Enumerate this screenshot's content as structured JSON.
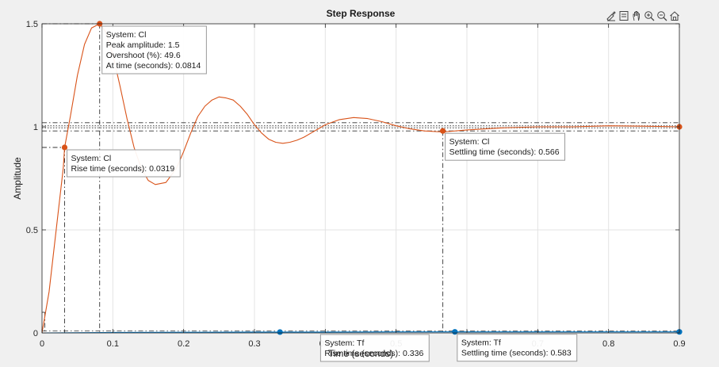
{
  "chart_data": {
    "type": "line",
    "title": "Step Response",
    "xlabel": "Time (seconds)",
    "ylabel": "Amplitude",
    "xlim": [
      0,
      0.9
    ],
    "ylim": [
      0,
      1.5
    ],
    "x_ticks": [
      0,
      0.1,
      0.2,
      0.3,
      0.4,
      0.5,
      0.6,
      0.7,
      0.8,
      0.9
    ],
    "x_tick_labels": [
      "0",
      "0.1",
      "0.2",
      "0.3",
      "0.4",
      "0.5",
      "0.6",
      "0.7",
      "0.8",
      "0.9"
    ],
    "y_ticks": [
      0,
      0.5,
      1,
      1.5
    ],
    "y_tick_labels": [
      "0",
      "0.5",
      "1",
      "1.5"
    ],
    "grid": true,
    "series": [
      {
        "name": "Cl",
        "color": "#d95319",
        "x": [
          0,
          0.01,
          0.02,
          0.03,
          0.0319,
          0.04,
          0.05,
          0.06,
          0.07,
          0.0814,
          0.09,
          0.1,
          0.11,
          0.12,
          0.13,
          0.14,
          0.15,
          0.16,
          0.175,
          0.19,
          0.2,
          0.21,
          0.22,
          0.23,
          0.24,
          0.25,
          0.26,
          0.27,
          0.28,
          0.29,
          0.3,
          0.31,
          0.32,
          0.33,
          0.34,
          0.35,
          0.36,
          0.37,
          0.38,
          0.39,
          0.4,
          0.42,
          0.44,
          0.46,
          0.48,
          0.5,
          0.52,
          0.54,
          0.566,
          0.6,
          0.65,
          0.7,
          0.75,
          0.8,
          0.85,
          0.9
        ],
        "y": [
          0,
          0.2,
          0.5,
          0.8,
          0.9,
          1.05,
          1.25,
          1.4,
          1.48,
          1.5,
          1.46,
          1.35,
          1.2,
          1.04,
          0.9,
          0.8,
          0.74,
          0.72,
          0.73,
          0.8,
          0.88,
          0.97,
          1.05,
          1.1,
          1.13,
          1.145,
          1.14,
          1.13,
          1.1,
          1.06,
          1.01,
          0.97,
          0.94,
          0.925,
          0.92,
          0.925,
          0.935,
          0.95,
          0.97,
          0.99,
          1.01,
          1.035,
          1.045,
          1.04,
          1.025,
          1.005,
          0.99,
          0.98,
          0.975,
          0.985,
          0.995,
          1.0,
          1.0,
          1.005,
          1.003,
          1.0
        ]
      },
      {
        "name": "Tf",
        "color": "#0072bd",
        "x": [
          0,
          0.1,
          0.2,
          0.3,
          0.336,
          0.4,
          0.5,
          0.583,
          0.6,
          0.7,
          0.8,
          0.9
        ],
        "y": [
          0,
          0.002,
          0.003,
          0.004,
          0.004,
          0.004,
          0.005,
          0.005,
          0.005,
          0.005,
          0.005,
          0.005
        ]
      }
    ],
    "reference_lines": {
      "settling_band_upper": 1.02,
      "settling_band_lower": 0.98,
      "final_value_dotted": [
        0.995,
        1.005
      ],
      "rise_low": 0.1,
      "rise_high": 0.9
    },
    "markers": [
      {
        "series": "Cl",
        "x": 0.0814,
        "y": 1.5
      },
      {
        "series": "Cl",
        "x": 0.0319,
        "y": 0.9
      },
      {
        "series": "Cl",
        "x": 0.566,
        "y": 0.98
      },
      {
        "series": "Cl",
        "x": 0.9,
        "y": 1.0
      },
      {
        "series": "Tf",
        "x": 0.336,
        "y": 0.004
      },
      {
        "series": "Tf",
        "x": 0.583,
        "y": 0.005
      },
      {
        "series": "Tf",
        "x": 0.9,
        "y": 0.005
      }
    ],
    "datatips": [
      {
        "x": 0.0814,
        "y": 1.5,
        "anchor": "top-right",
        "lines": [
          "System: Cl",
          "Peak amplitude: 1.5",
          "Overshoot (%): 49.6",
          "At time (seconds): 0.0814"
        ]
      },
      {
        "x": 0.0319,
        "y": 0.9,
        "anchor": "top-right",
        "lines": [
          "System: Cl",
          "Rise time (seconds): 0.0319"
        ]
      },
      {
        "x": 0.566,
        "y": 0.98,
        "anchor": "top-right",
        "lines": [
          "System: Cl",
          "Settling time (seconds): 0.566"
        ]
      },
      {
        "x": 0.39,
        "y": 0.004,
        "anchor": "top-right",
        "lines": [
          "System: Tf",
          "Rise time (seconds): 0.336"
        ]
      },
      {
        "x": 0.583,
        "y": 0.005,
        "anchor": "top-right",
        "lines": [
          "System: Tf",
          "Settling time (seconds): 0.583"
        ]
      }
    ]
  },
  "toolbar": {
    "icons": [
      "brush-icon",
      "datatip-icon",
      "pan-icon",
      "zoom-in-icon",
      "zoom-out-icon",
      "home-icon"
    ]
  }
}
